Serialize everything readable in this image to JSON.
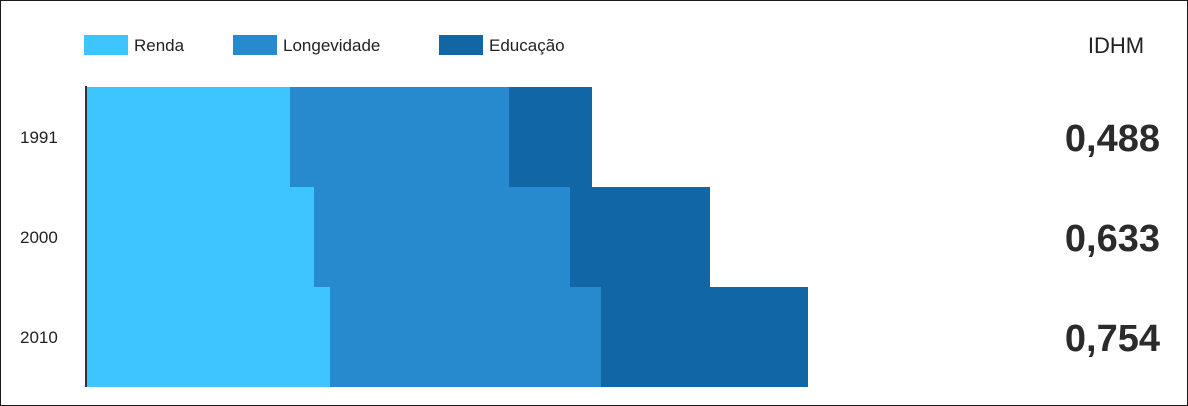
{
  "chart_data": {
    "type": "bar",
    "stacked": true,
    "orientation": "horizontal",
    "categories": [
      "1991",
      "2000",
      "2010"
    ],
    "series": [
      {
        "name": "Renda",
        "values": [
          0.204,
          0.228,
          0.244
        ],
        "color": "#3EC4FF"
      },
      {
        "name": "Longevidade",
        "values": [
          0.219,
          0.256,
          0.271
        ],
        "color": "#2789CE"
      },
      {
        "name": "Educação",
        "values": [
          0.083,
          0.14,
          0.207
        ],
        "color": "#1167A6"
      }
    ],
    "legend_position": "top-left",
    "grid": false
  },
  "idhm": {
    "header": "IDHM",
    "values": [
      "0,488",
      "0,633",
      "0,754"
    ]
  }
}
